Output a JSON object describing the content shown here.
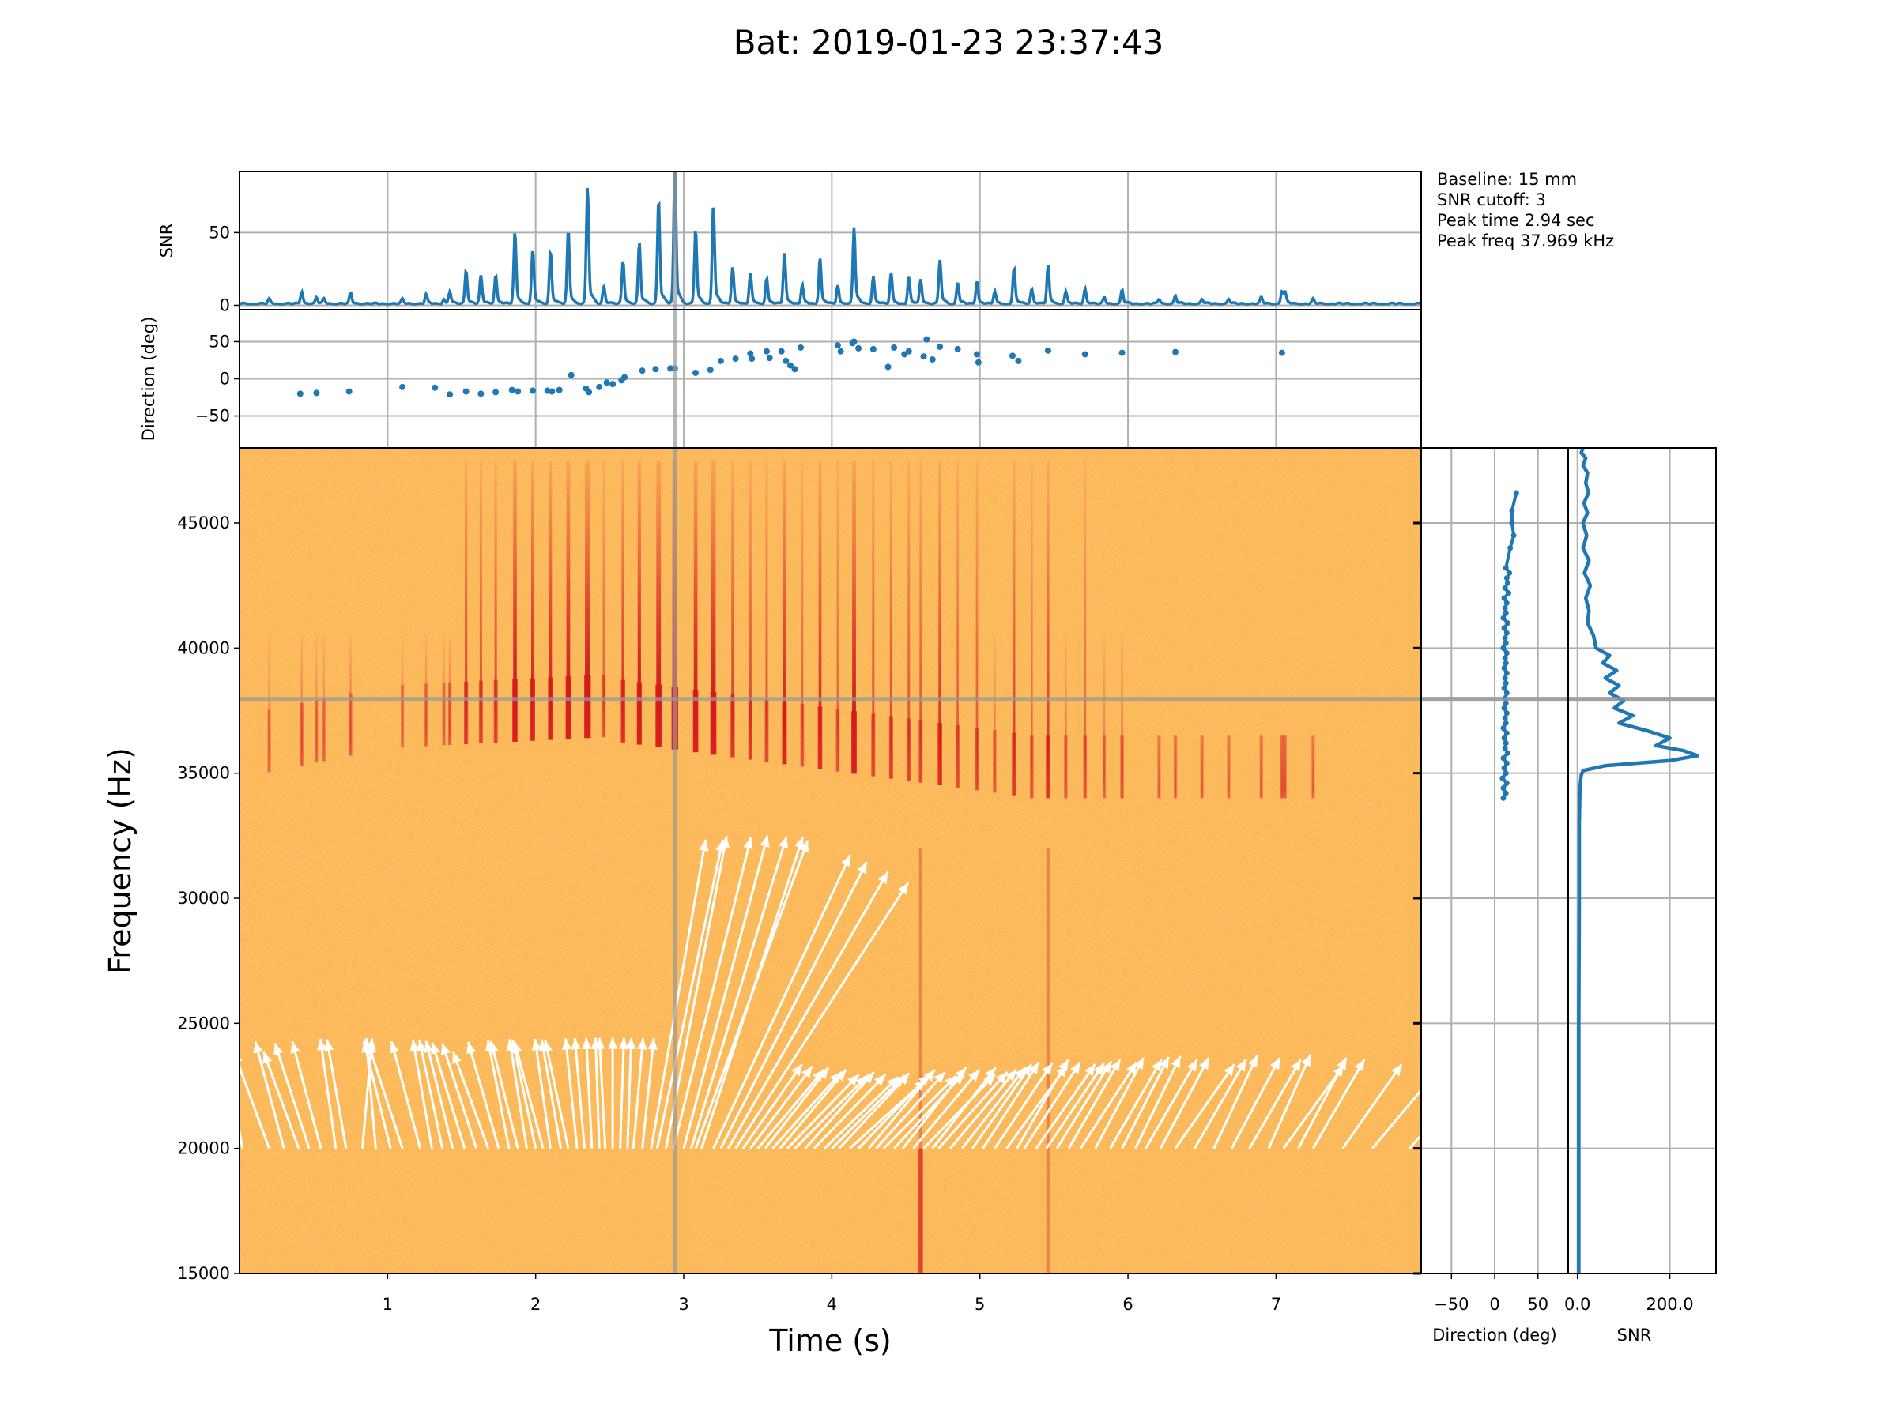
{
  "figure": {
    "title": "Bat: 2019-01-23 23:37:43",
    "info_lines": [
      "Baseline: 15 mm",
      "SNR cutoff: 3",
      "Peak time 2.94 sec",
      "Peak freq 37.969 kHz"
    ]
  },
  "colors": {
    "series": "#1f77b4",
    "grid": "#b0b0b0",
    "marker_line": "#999999",
    "spec_background": "#fbb04a",
    "spec_call": "#d7191c",
    "arrow": "#ffffff"
  },
  "chart_data": [
    {
      "id": "snr_time",
      "type": "line",
      "xlabel": "",
      "ylabel": "SNR",
      "xlim": [
        0,
        7.98
      ],
      "ylim": [
        -3,
        92
      ],
      "yticks": [
        0,
        50
      ],
      "grid": true,
      "peak_times": [
        0.2,
        0.42,
        0.52,
        0.57,
        0.75,
        1.1,
        1.26,
        1.38,
        1.42,
        1.53,
        1.63,
        1.73,
        1.86,
        1.98,
        2.1,
        2.22,
        2.35,
        2.46,
        2.59,
        2.7,
        2.83,
        2.94,
        3.08,
        3.2,
        3.33,
        3.45,
        3.56,
        3.68,
        3.8,
        3.92,
        4.04,
        4.15,
        4.28,
        4.4,
        4.52,
        4.6,
        4.73,
        4.85,
        4.98,
        5.1,
        5.23,
        5.35,
        5.46,
        5.58,
        5.71,
        5.84,
        5.96,
        6.21,
        6.32,
        6.5,
        6.68,
        6.9,
        7.04,
        7.06,
        7.25
      ],
      "peak_values": [
        3,
        8,
        4,
        3,
        7,
        3,
        6,
        3,
        8,
        22,
        18,
        19,
        47,
        35,
        35,
        48,
        77,
        12,
        28,
        40,
        69,
        91,
        49,
        66,
        24,
        20,
        17,
        34,
        12,
        30,
        12,
        50,
        18,
        20,
        17,
        16,
        29,
        14,
        15,
        8,
        23,
        10,
        25,
        8,
        10,
        4,
        9,
        3,
        5,
        3,
        3,
        4,
        8,
        7,
        3
      ]
    },
    {
      "id": "direction_time",
      "type": "scatter",
      "xlabel": "",
      "ylabel": "Direction (deg)",
      "xlim": [
        0,
        7.98
      ],
      "ylim": [
        -93,
        93
      ],
      "yticks": [
        -50,
        0,
        50
      ],
      "grid": true,
      "points": [
        [
          0.41,
          -20
        ],
        [
          0.52,
          -19
        ],
        [
          0.74,
          -17
        ],
        [
          1.1,
          -11
        ],
        [
          1.32,
          -12
        ],
        [
          1.42,
          -21
        ],
        [
          1.53,
          -17
        ],
        [
          1.63,
          -20
        ],
        [
          1.73,
          -18
        ],
        [
          1.84,
          -15
        ],
        [
          1.88,
          -17
        ],
        [
          1.98,
          -16
        ],
        [
          2.08,
          -16
        ],
        [
          2.11,
          -17
        ],
        [
          2.16,
          -15
        ],
        [
          2.24,
          5
        ],
        [
          2.34,
          -13
        ],
        [
          2.36,
          -18
        ],
        [
          2.43,
          -11
        ],
        [
          2.48,
          -5
        ],
        [
          2.52,
          -7
        ],
        [
          2.58,
          -2
        ],
        [
          2.6,
          2
        ],
        [
          2.72,
          11
        ],
        [
          2.81,
          13
        ],
        [
          2.91,
          14
        ],
        [
          2.94,
          14
        ],
        [
          3.08,
          8
        ],
        [
          3.18,
          12
        ],
        [
          3.25,
          24
        ],
        [
          3.35,
          27
        ],
        [
          3.45,
          34
        ],
        [
          3.46,
          27
        ],
        [
          3.56,
          37
        ],
        [
          3.58,
          28
        ],
        [
          3.66,
          37
        ],
        [
          3.69,
          24
        ],
        [
          3.72,
          18
        ],
        [
          3.75,
          13
        ],
        [
          3.79,
          42
        ],
        [
          4.04,
          45
        ],
        [
          4.06,
          37
        ],
        [
          4.14,
          48
        ],
        [
          4.15,
          50
        ],
        [
          4.18,
          41
        ],
        [
          4.28,
          40
        ],
        [
          4.38,
          16
        ],
        [
          4.42,
          42
        ],
        [
          4.49,
          33
        ],
        [
          4.52,
          37
        ],
        [
          4.62,
          30
        ],
        [
          4.64,
          53
        ],
        [
          4.68,
          26
        ],
        [
          4.73,
          43
        ],
        [
          4.85,
          40
        ],
        [
          4.98,
          33
        ],
        [
          4.99,
          22
        ],
        [
          5.22,
          31
        ],
        [
          5.26,
          24
        ],
        [
          5.46,
          38
        ],
        [
          5.71,
          33
        ],
        [
          5.96,
          35
        ],
        [
          6.32,
          36
        ],
        [
          7.04,
          35
        ]
      ]
    },
    {
      "id": "spectrogram",
      "type": "heatmap",
      "xlabel": "Time (s)",
      "ylabel": "Frequency (Hz)",
      "xlim": [
        0,
        7.98
      ],
      "ylim": [
        15000,
        48000
      ],
      "xticks": [
        1,
        2,
        3,
        4,
        5,
        6,
        7
      ],
      "yticks": [
        15000,
        20000,
        25000,
        30000,
        35000,
        40000,
        45000
      ],
      "peak_time": 2.94,
      "peak_freq": 37969,
      "call_times": [
        0.2,
        0.42,
        0.52,
        0.57,
        0.75,
        1.1,
        1.26,
        1.38,
        1.42,
        1.53,
        1.63,
        1.73,
        1.86,
        1.98,
        2.1,
        2.22,
        2.35,
        2.46,
        2.59,
        2.7,
        2.83,
        2.94,
        3.08,
        3.2,
        3.33,
        3.45,
        3.56,
        3.68,
        3.8,
        3.92,
        4.04,
        4.15,
        4.28,
        4.4,
        4.52,
        4.6,
        4.73,
        4.85,
        4.98,
        5.1,
        5.23,
        5.35,
        5.46,
        5.58,
        5.71,
        5.84,
        5.96,
        6.21,
        6.32,
        6.5,
        6.68,
        6.9,
        7.04,
        7.06,
        7.25
      ],
      "direction_arrows": [
        [
          0.02,
          -10
        ],
        [
          0.2,
          -20
        ],
        [
          0.3,
          -15
        ],
        [
          0.4,
          -20
        ],
        [
          0.47,
          -18
        ],
        [
          0.55,
          -15
        ],
        [
          0.65,
          -8
        ],
        [
          0.72,
          -10
        ],
        [
          0.83,
          5
        ],
        [
          0.92,
          -5
        ],
        [
          1.02,
          -14
        ],
        [
          1.1,
          -18
        ],
        [
          1.22,
          -15
        ],
        [
          1.3,
          -10
        ],
        [
          1.37,
          -12
        ],
        [
          1.44,
          -14
        ],
        [
          1.52,
          -17
        ],
        [
          1.6,
          -18
        ],
        [
          1.68,
          -20
        ],
        [
          1.75,
          -16
        ],
        [
          1.82,
          -11
        ],
        [
          1.88,
          -14
        ],
        [
          1.94,
          -9
        ],
        [
          2.0,
          -12
        ],
        [
          2.05,
          -15
        ],
        [
          2.1,
          -8
        ],
        [
          2.17,
          -10
        ],
        [
          2.22,
          -12
        ],
        [
          2.28,
          -6
        ],
        [
          2.33,
          -5
        ],
        [
          2.38,
          -3
        ],
        [
          2.43,
          -2
        ],
        [
          2.47,
          -3
        ],
        [
          2.52,
          0
        ],
        [
          2.57,
          2
        ],
        [
          2.62,
          2
        ],
        [
          2.66,
          5
        ],
        [
          2.72,
          6
        ],
        [
          2.78,
          10
        ],
        [
          2.82,
          12
        ],
        [
          2.88,
          11
        ],
        [
          2.93,
          14
        ],
        [
          3.0,
          15
        ],
        [
          3.05,
          17
        ],
        [
          3.08,
          20
        ],
        [
          3.12,
          18
        ],
        [
          3.2,
          25
        ],
        [
          3.25,
          27
        ],
        [
          3.3,
          30
        ],
        [
          3.35,
          33
        ],
        [
          3.4,
          35
        ],
        [
          3.45,
          37
        ],
        [
          3.5,
          40
        ],
        [
          3.55,
          38
        ],
        [
          3.6,
          42
        ],
        [
          3.65,
          40
        ],
        [
          3.7,
          44
        ],
        [
          3.75,
          45
        ],
        [
          3.82,
          42
        ],
        [
          3.88,
          44
        ],
        [
          3.95,
          46
        ],
        [
          4.0,
          45
        ],
        [
          4.05,
          43
        ],
        [
          4.12,
          48
        ],
        [
          4.18,
          44
        ],
        [
          4.25,
          40
        ],
        [
          4.3,
          42
        ],
        [
          4.35,
          45
        ],
        [
          4.42,
          43
        ],
        [
          4.48,
          38
        ],
        [
          4.55,
          40
        ],
        [
          4.62,
          44
        ],
        [
          4.68,
          38
        ],
        [
          4.72,
          42
        ],
        [
          4.8,
          40
        ],
        [
          4.88,
          38
        ],
        [
          4.95,
          35
        ],
        [
          5.02,
          33
        ],
        [
          5.1,
          34
        ],
        [
          5.18,
          36
        ],
        [
          5.25,
          30
        ],
        [
          5.3,
          33
        ],
        [
          5.38,
          35
        ],
        [
          5.45,
          34
        ],
        [
          5.52,
          32
        ],
        [
          5.6,
          30
        ],
        [
          5.68,
          33
        ],
        [
          5.78,
          28
        ],
        [
          5.88,
          30
        ],
        [
          5.96,
          27
        ],
        [
          6.05,
          26
        ],
        [
          6.12,
          30
        ],
        [
          6.22,
          28
        ],
        [
          6.32,
          35
        ],
        [
          6.45,
          30
        ],
        [
          6.58,
          25
        ],
        [
          6.7,
          28
        ],
        [
          6.82,
          30
        ],
        [
          6.95,
          24
        ],
        [
          7.05,
          36
        ],
        [
          7.15,
          28
        ],
        [
          7.25,
          30
        ],
        [
          7.45,
          35
        ],
        [
          7.65,
          40
        ],
        [
          7.9,
          42
        ]
      ]
    },
    {
      "id": "direction_freq",
      "type": "line",
      "xlabel": "Direction (deg)",
      "ylabel": "",
      "xlim": [
        -85,
        85
      ],
      "xticks": [
        -50,
        0,
        50
      ],
      "ylim": [
        15000,
        48000
      ],
      "grid": true,
      "x": [
        10,
        13,
        10,
        14,
        9,
        13,
        11,
        14,
        10,
        15,
        12,
        13,
        11,
        14,
        10,
        13,
        12,
        14,
        11,
        13,
        12,
        14,
        11,
        13,
        12,
        14,
        11,
        13,
        12,
        14,
        10,
        13,
        12,
        14,
        11,
        15,
        10,
        13,
        12,
        14,
        11,
        16,
        12,
        15,
        14,
        17,
        13,
        18,
        22,
        20,
        20,
        25
      ],
      "y": [
        34000,
        34200,
        34400,
        34600,
        34800,
        35000,
        35200,
        35400,
        35600,
        35800,
        36000,
        36200,
        36400,
        36600,
        36800,
        37000,
        37200,
        37400,
        37600,
        37800,
        38000,
        38200,
        38400,
        38600,
        38800,
        39000,
        39200,
        39400,
        39600,
        39800,
        40000,
        40200,
        40400,
        40600,
        40800,
        41000,
        41200,
        41400,
        41600,
        41800,
        42000,
        42200,
        42400,
        42600,
        42800,
        43000,
        43200,
        44000,
        44500,
        45000,
        45500,
        46200
      ]
    },
    {
      "id": "snr_freq",
      "type": "line",
      "xlabel": "SNR",
      "ylabel": "",
      "xlim": [
        -20,
        300
      ],
      "xticks": [
        0.0,
        200.0
      ],
      "ylim": [
        15000,
        48000
      ],
      "grid": true,
      "x": [
        3,
        3,
        3,
        4,
        4,
        5,
        6,
        8,
        12,
        60,
        200,
        260,
        230,
        170,
        200,
        150,
        90,
        120,
        80,
        100,
        70,
        90,
        60,
        85,
        55,
        70,
        40,
        35,
        22,
        25,
        18,
        28,
        15,
        25,
        12,
        20,
        12,
        22,
        14,
        24,
        18,
        22,
        12,
        18,
        8,
        12
      ],
      "y": [
        15000,
        20000,
        25000,
        30000,
        33000,
        34000,
        34500,
        34900,
        35100,
        35300,
        35500,
        35700,
        35900,
        36100,
        36400,
        36700,
        37000,
        37300,
        37600,
        37900,
        38200,
        38500,
        38800,
        39100,
        39400,
        39700,
        40000,
        40500,
        41000,
        41500,
        42000,
        42500,
        43000,
        43500,
        44000,
        44500,
        45000,
        45400,
        45800,
        46200,
        46600,
        47000,
        47300,
        47600,
        47800,
        48000
      ]
    }
  ]
}
